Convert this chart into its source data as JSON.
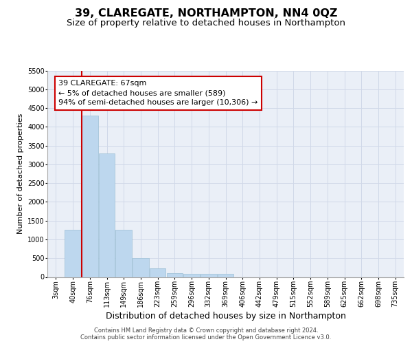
{
  "title": "39, CLAREGATE, NORTHAMPTON, NN4 0QZ",
  "subtitle": "Size of property relative to detached houses in Northampton",
  "xlabel": "Distribution of detached houses by size in Northampton",
  "ylabel": "Number of detached properties",
  "categories": [
    "3sqm",
    "40sqm",
    "76sqm",
    "113sqm",
    "149sqm",
    "186sqm",
    "223sqm",
    "259sqm",
    "296sqm",
    "332sqm",
    "369sqm",
    "406sqm",
    "442sqm",
    "479sqm",
    "515sqm",
    "552sqm",
    "589sqm",
    "625sqm",
    "662sqm",
    "698sqm",
    "735sqm"
  ],
  "values": [
    0,
    1250,
    4300,
    3300,
    1250,
    500,
    225,
    100,
    80,
    75,
    75,
    0,
    0,
    0,
    0,
    0,
    0,
    0,
    0,
    0,
    0
  ],
  "bar_color": "#bdd7ee",
  "bar_edge_color": "#9bbfd4",
  "grid_color": "#d0d8e8",
  "background_color": "#eaeff7",
  "vline_x_index": 1.52,
  "vline_color": "#cc0000",
  "annotation_line1": "39 CLAREGATE: 67sqm",
  "annotation_line2": "← 5% of detached houses are smaller (589)",
  "annotation_line3": "94% of semi-detached houses are larger (10,306) →",
  "annotation_box_edgecolor": "#cc0000",
  "ylim": [
    0,
    5500
  ],
  "yticks": [
    0,
    500,
    1000,
    1500,
    2000,
    2500,
    3000,
    3500,
    4000,
    4500,
    5000,
    5500
  ],
  "footer_line1": "Contains HM Land Registry data © Crown copyright and database right 2024.",
  "footer_line2": "Contains public sector information licensed under the Open Government Licence v3.0.",
  "title_fontsize": 11.5,
  "subtitle_fontsize": 9.5,
  "xlabel_fontsize": 9,
  "ylabel_fontsize": 8,
  "tick_fontsize": 7,
  "annot_fontsize": 8,
  "footer_fontsize": 6
}
